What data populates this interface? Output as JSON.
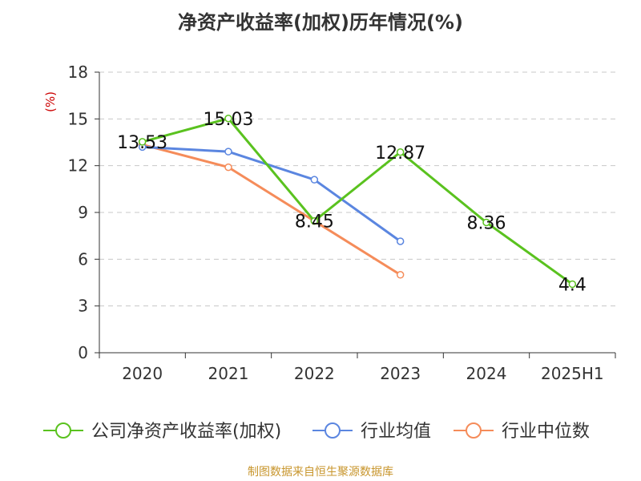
{
  "chart_data": {
    "type": "line",
    "title": "净资产收益率(加权)历年情况(%)",
    "ylabel": "(%)",
    "xlabel": "",
    "categories": [
      "2020",
      "2021",
      "2022",
      "2023",
      "2024",
      "2025H1"
    ],
    "ylim": [
      0,
      18
    ],
    "yticks": [
      0,
      3,
      6,
      9,
      12,
      15,
      18
    ],
    "grid": true,
    "legend_position": "bottom",
    "series": [
      {
        "name": "公司净资产收益率(加权)",
        "color": "#5ac21f",
        "values": [
          13.53,
          15.03,
          8.45,
          12.87,
          8.36,
          4.4
        ],
        "labels": [
          "13.53",
          "15.03",
          "8.45",
          "12.87",
          "8.36",
          "4.4"
        ]
      },
      {
        "name": "行业均值",
        "color": "#5b86e0",
        "values": [
          13.2,
          12.9,
          11.1,
          7.15,
          null,
          null
        ]
      },
      {
        "name": "行业中位数",
        "color": "#f58c5a",
        "values": [
          13.35,
          11.9,
          8.45,
          5.0,
          null,
          null
        ]
      }
    ]
  },
  "source": "制图数据来自恒生聚源数据库"
}
